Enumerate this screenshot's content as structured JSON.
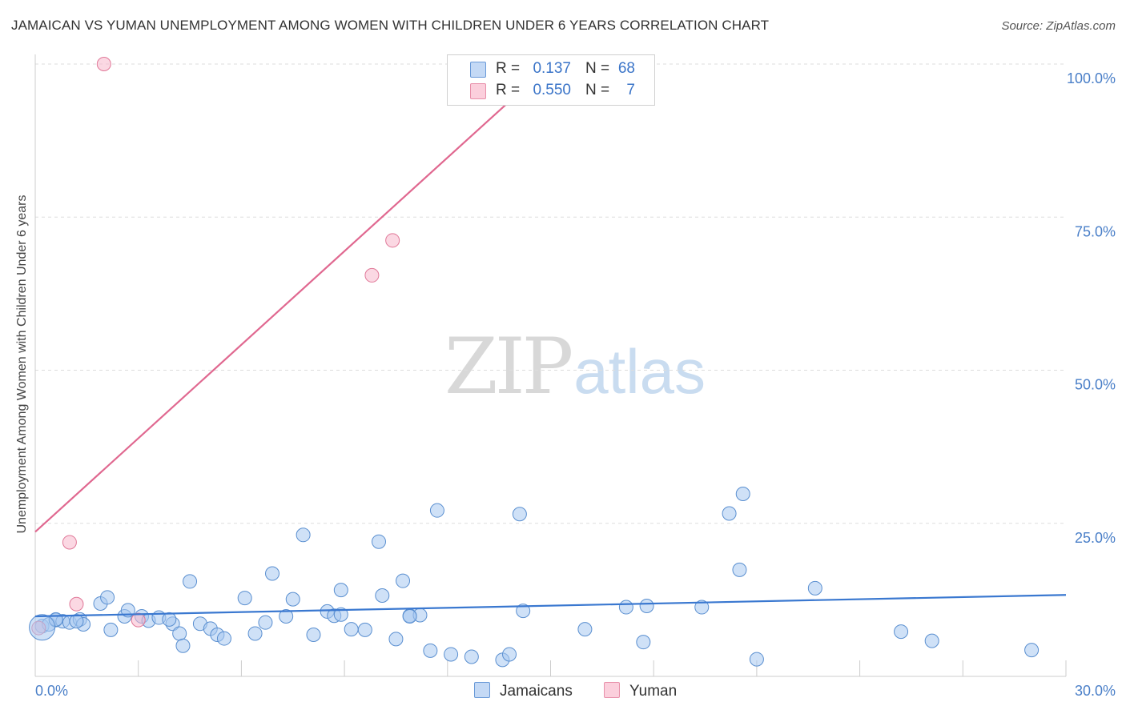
{
  "title": "JAMAICAN VS YUMAN UNEMPLOYMENT AMONG WOMEN WITH CHILDREN UNDER 6 YEARS CORRELATION CHART",
  "source": "Source: ZipAtlas.com",
  "watermark": {
    "zip": "ZIP",
    "atlas": "atlas"
  },
  "legend_stats": [
    {
      "r_label": "R =",
      "r_value": "0.137",
      "n_label": "N =",
      "n_value": "68",
      "color": "#a8c8f0"
    },
    {
      "r_label": "R =",
      "r_value": "0.550",
      "n_label": "N =",
      "n_value": "7",
      "color": "#f8b8cc"
    }
  ],
  "chart_data": {
    "type": "scatter",
    "title": "JAMAICAN VS YUMAN UNEMPLOYMENT AMONG WOMEN WITH CHILDREN UNDER 6 YEARS CORRELATION CHART",
    "xlabel": "",
    "ylabel": "Unemployment Among Women with Children Under 6 years",
    "xlim": [
      0,
      30
    ],
    "ylim": [
      0,
      100
    ],
    "x_tick_labels": [
      "0.0%",
      "30.0%"
    ],
    "y_ticks": [
      25,
      50,
      75,
      100
    ],
    "y_tick_labels": [
      "25.0%",
      "50.0%",
      "75.0%",
      "100.0%"
    ],
    "grid": true,
    "series": [
      {
        "name": "Jamaicans",
        "color": "#a8c8f0",
        "stroke": "#5a8fd0",
        "trend_color": "#3a78d0",
        "trend": [
          [
            0,
            9.8
          ],
          [
            30,
            13.3
          ]
        ],
        "points": [
          [
            0.2,
            8.2
          ],
          [
            0.4,
            8.5
          ],
          [
            0.6,
            9.2
          ],
          [
            0.8,
            9.0
          ],
          [
            1.0,
            8.8
          ],
          [
            1.3,
            9.3
          ],
          [
            1.4,
            8.5
          ],
          [
            1.9,
            11.9
          ],
          [
            2.2,
            7.6
          ],
          [
            2.1,
            12.9
          ],
          [
            2.6,
            9.8
          ],
          [
            2.7,
            10.8
          ],
          [
            3.1,
            9.8
          ],
          [
            3.3,
            9.1
          ],
          [
            3.6,
            9.6
          ],
          [
            4.0,
            8.6
          ],
          [
            4.2,
            7.0
          ],
          [
            4.3,
            5.0
          ],
          [
            4.5,
            15.5
          ],
          [
            4.8,
            8.6
          ],
          [
            5.1,
            7.8
          ],
          [
            5.3,
            6.8
          ],
          [
            5.5,
            6.2
          ],
          [
            6.1,
            12.8
          ],
          [
            6.4,
            7.0
          ],
          [
            6.7,
            8.8
          ],
          [
            6.9,
            16.8
          ],
          [
            7.3,
            9.8
          ],
          [
            7.5,
            12.6
          ],
          [
            7.8,
            23.1
          ],
          [
            8.1,
            6.8
          ],
          [
            8.5,
            10.6
          ],
          [
            8.7,
            9.9
          ],
          [
            8.9,
            14.1
          ],
          [
            9.2,
            7.7
          ],
          [
            9.6,
            7.6
          ],
          [
            10.0,
            22.0
          ],
          [
            10.1,
            13.2
          ],
          [
            10.5,
            6.1
          ],
          [
            10.7,
            15.6
          ],
          [
            10.9,
            9.9
          ],
          [
            11.2,
            10.0
          ],
          [
            11.5,
            4.2
          ],
          [
            11.7,
            27.1
          ],
          [
            12.1,
            3.6
          ],
          [
            12.7,
            3.2
          ],
          [
            13.6,
            2.7
          ],
          [
            13.8,
            3.6
          ],
          [
            14.1,
            26.5
          ],
          [
            14.2,
            10.7
          ],
          [
            16.0,
            7.7
          ],
          [
            17.2,
            11.3
          ],
          [
            17.7,
            5.6
          ],
          [
            17.8,
            11.5
          ],
          [
            19.4,
            11.3
          ],
          [
            20.2,
            26.6
          ],
          [
            20.5,
            17.4
          ],
          [
            20.6,
            29.8
          ],
          [
            21.0,
            2.8
          ],
          [
            22.7,
            14.4
          ],
          [
            25.2,
            7.3
          ],
          [
            26.1,
            5.8
          ],
          [
            29.0,
            4.3
          ],
          [
            0.6,
            9.3
          ],
          [
            1.2,
            9.0
          ],
          [
            3.9,
            9.3
          ],
          [
            10.9,
            9.8
          ],
          [
            8.9,
            10.1
          ]
        ]
      },
      {
        "name": "Yuman",
        "color": "#f8b8cc",
        "stroke": "#e07898",
        "trend_color": "#e06890",
        "trend": [
          [
            0,
            23.6
          ],
          [
            15.0,
            100
          ]
        ],
        "points": [
          [
            0.1,
            7.9
          ],
          [
            1.0,
            21.9
          ],
          [
            1.2,
            11.8
          ],
          [
            3.0,
            9.2
          ],
          [
            9.8,
            65.5
          ],
          [
            10.4,
            71.2
          ],
          [
            2.0,
            100.0
          ]
        ]
      }
    ]
  }
}
